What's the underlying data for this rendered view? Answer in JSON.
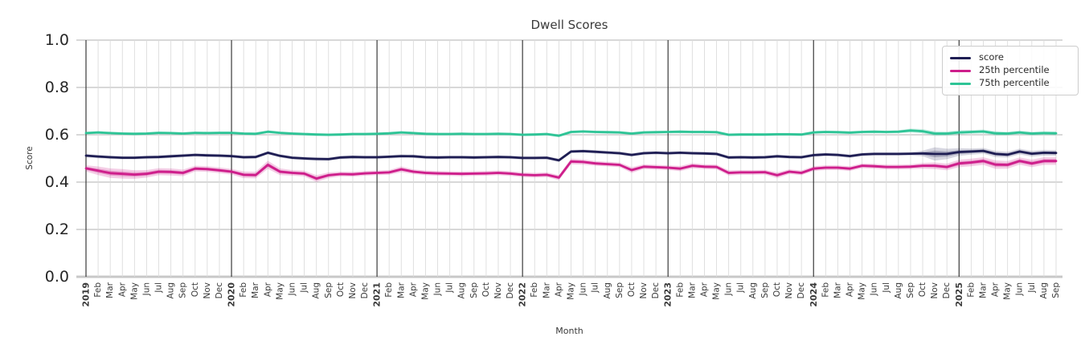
{
  "chart_data": {
    "type": "line",
    "title": "Dwell Scores",
    "xlabel": "Month",
    "ylabel": "Score",
    "ylim": [
      0.0,
      1.0
    ],
    "yticks": [
      0.0,
      0.2,
      0.4,
      0.6,
      0.8,
      1.0
    ],
    "grid": true,
    "legend_position": "upper right",
    "x_labels": [
      "2019",
      "Feb",
      "Mar",
      "Apr",
      "May",
      "Jun",
      "Jul",
      "Aug",
      "Sep",
      "Oct",
      "Nov",
      "Dec",
      "2020",
      "Feb",
      "Mar",
      "Apr",
      "May",
      "Jun",
      "Jul",
      "Aug",
      "Sep",
      "Oct",
      "Nov",
      "Dec",
      "2021",
      "Feb",
      "Mar",
      "Apr",
      "May",
      "Jun",
      "Jul",
      "Aug",
      "Sep",
      "Oct",
      "Nov",
      "Dec",
      "2022",
      "Feb",
      "Mar",
      "Apr",
      "May",
      "Jun",
      "Jul",
      "Aug",
      "Sep",
      "Oct",
      "Nov",
      "Dec",
      "2023",
      "Feb",
      "Mar",
      "Apr",
      "May",
      "Jun",
      "Jul",
      "Aug",
      "Sep",
      "Oct",
      "Nov",
      "Dec",
      "2024",
      "Feb",
      "Mar",
      "Apr",
      "May",
      "Jun",
      "Jul",
      "Aug",
      "Sep",
      "Oct",
      "Nov",
      "Dec",
      "2025",
      "Feb",
      "Mar",
      "Apr",
      "May",
      "Jun",
      "Jul",
      "Aug",
      "Sep"
    ],
    "year_tick_indices": [
      0,
      12,
      24,
      36,
      48,
      60,
      72
    ],
    "series": [
      {
        "name": "score",
        "color": "#1e1d53",
        "band_opacity": 0.18,
        "values": [
          0.512,
          0.508,
          0.505,
          0.503,
          0.503,
          0.505,
          0.506,
          0.509,
          0.512,
          0.515,
          0.513,
          0.512,
          0.51,
          0.505,
          0.506,
          0.524,
          0.511,
          0.503,
          0.5,
          0.498,
          0.497,
          0.504,
          0.506,
          0.505,
          0.505,
          0.507,
          0.51,
          0.509,
          0.505,
          0.504,
          0.505,
          0.505,
          0.504,
          0.505,
          0.506,
          0.505,
          0.502,
          0.502,
          0.503,
          0.492,
          0.529,
          0.531,
          0.528,
          0.525,
          0.522,
          0.515,
          0.522,
          0.524,
          0.522,
          0.524,
          0.522,
          0.521,
          0.519,
          0.504,
          0.505,
          0.504,
          0.505,
          0.509,
          0.506,
          0.505,
          0.514,
          0.517,
          0.515,
          0.51,
          0.517,
          0.519,
          0.519,
          0.519,
          0.52,
          0.521,
          0.519,
          0.519,
          0.527,
          0.529,
          0.532,
          0.519,
          0.516,
          0.529,
          0.52,
          0.524,
          0.523
        ],
        "band_halfwidth": [
          0.007,
          0.007,
          0.007,
          0.007,
          0.007,
          0.007,
          0.007,
          0.007,
          0.007,
          0.007,
          0.007,
          0.007,
          0.007,
          0.007,
          0.007,
          0.007,
          0.007,
          0.007,
          0.007,
          0.007,
          0.007,
          0.007,
          0.007,
          0.007,
          0.007,
          0.007,
          0.007,
          0.007,
          0.007,
          0.007,
          0.007,
          0.007,
          0.007,
          0.007,
          0.007,
          0.007,
          0.007,
          0.007,
          0.007,
          0.007,
          0.007,
          0.007,
          0.007,
          0.007,
          0.007,
          0.007,
          0.007,
          0.007,
          0.007,
          0.007,
          0.007,
          0.007,
          0.007,
          0.007,
          0.007,
          0.007,
          0.007,
          0.007,
          0.007,
          0.007,
          0.007,
          0.007,
          0.007,
          0.007,
          0.007,
          0.007,
          0.007,
          0.007,
          0.007,
          0.012,
          0.028,
          0.022,
          0.016,
          0.013,
          0.012,
          0.013,
          0.012,
          0.012,
          0.012,
          0.012,
          0.012
        ]
      },
      {
        "name": "25th percentile",
        "color": "#ce1e8b",
        "band_opacity": 0.22,
        "values": [
          0.458,
          0.448,
          0.438,
          0.435,
          0.432,
          0.435,
          0.444,
          0.443,
          0.439,
          0.457,
          0.455,
          0.45,
          0.444,
          0.431,
          0.43,
          0.473,
          0.444,
          0.439,
          0.436,
          0.415,
          0.429,
          0.434,
          0.433,
          0.437,
          0.439,
          0.441,
          0.454,
          0.444,
          0.439,
          0.437,
          0.436,
          0.435,
          0.436,
          0.437,
          0.439,
          0.436,
          0.431,
          0.429,
          0.431,
          0.419,
          0.487,
          0.485,
          0.479,
          0.476,
          0.473,
          0.451,
          0.465,
          0.463,
          0.461,
          0.457,
          0.469,
          0.465,
          0.464,
          0.439,
          0.441,
          0.441,
          0.442,
          0.429,
          0.444,
          0.439,
          0.457,
          0.461,
          0.461,
          0.457,
          0.469,
          0.467,
          0.464,
          0.464,
          0.465,
          0.469,
          0.469,
          0.464,
          0.479,
          0.483,
          0.489,
          0.474,
          0.473,
          0.489,
          0.479,
          0.489,
          0.489
        ],
        "band_halfwidth": [
          0.013,
          0.018,
          0.02,
          0.02,
          0.018,
          0.016,
          0.015,
          0.015,
          0.014,
          0.012,
          0.012,
          0.012,
          0.012,
          0.014,
          0.014,
          0.017,
          0.014,
          0.012,
          0.012,
          0.014,
          0.012,
          0.01,
          0.01,
          0.01,
          0.01,
          0.01,
          0.012,
          0.01,
          0.01,
          0.01,
          0.01,
          0.01,
          0.01,
          0.01,
          0.01,
          0.01,
          0.01,
          0.01,
          0.01,
          0.011,
          0.012,
          0.011,
          0.01,
          0.01,
          0.01,
          0.012,
          0.01,
          0.01,
          0.01,
          0.011,
          0.011,
          0.01,
          0.01,
          0.011,
          0.01,
          0.01,
          0.01,
          0.012,
          0.01,
          0.01,
          0.01,
          0.01,
          0.01,
          0.01,
          0.01,
          0.01,
          0.01,
          0.01,
          0.01,
          0.012,
          0.014,
          0.014,
          0.016,
          0.016,
          0.016,
          0.018,
          0.016,
          0.015,
          0.016,
          0.016,
          0.016
        ]
      },
      {
        "name": "75th percentile",
        "color": "#2ec496",
        "band_opacity": 0.25,
        "values": [
          0.607,
          0.61,
          0.607,
          0.605,
          0.604,
          0.605,
          0.608,
          0.607,
          0.605,
          0.608,
          0.607,
          0.608,
          0.608,
          0.605,
          0.604,
          0.613,
          0.608,
          0.605,
          0.603,
          0.601,
          0.6,
          0.601,
          0.603,
          0.603,
          0.604,
          0.606,
          0.61,
          0.607,
          0.604,
          0.603,
          0.603,
          0.604,
          0.603,
          0.603,
          0.604,
          0.603,
          0.6,
          0.601,
          0.603,
          0.596,
          0.612,
          0.614,
          0.612,
          0.611,
          0.61,
          0.605,
          0.61,
          0.611,
          0.612,
          0.613,
          0.612,
          0.612,
          0.611,
          0.6,
          0.601,
          0.601,
          0.601,
          0.602,
          0.602,
          0.601,
          0.61,
          0.612,
          0.611,
          0.609,
          0.612,
          0.613,
          0.612,
          0.613,
          0.618,
          0.615,
          0.605,
          0.605,
          0.61,
          0.612,
          0.614,
          0.606,
          0.605,
          0.61,
          0.605,
          0.607,
          0.606
        ],
        "band_halfwidth": [
          0.006,
          0.006,
          0.006,
          0.006,
          0.006,
          0.006,
          0.006,
          0.006,
          0.006,
          0.006,
          0.006,
          0.006,
          0.006,
          0.006,
          0.006,
          0.006,
          0.006,
          0.006,
          0.006,
          0.006,
          0.006,
          0.006,
          0.006,
          0.006,
          0.006,
          0.006,
          0.006,
          0.006,
          0.006,
          0.006,
          0.006,
          0.006,
          0.006,
          0.006,
          0.006,
          0.006,
          0.006,
          0.006,
          0.006,
          0.006,
          0.006,
          0.006,
          0.006,
          0.006,
          0.006,
          0.006,
          0.006,
          0.006,
          0.006,
          0.006,
          0.006,
          0.006,
          0.006,
          0.006,
          0.006,
          0.006,
          0.006,
          0.006,
          0.006,
          0.006,
          0.006,
          0.006,
          0.006,
          0.006,
          0.006,
          0.006,
          0.006,
          0.006,
          0.008,
          0.009,
          0.01,
          0.009,
          0.009,
          0.008,
          0.008,
          0.009,
          0.008,
          0.008,
          0.008,
          0.008,
          0.008
        ]
      }
    ],
    "colors": {
      "grid_horizontal": "#cbcbcb",
      "grid_month": "#dcdcdc",
      "grid_year": "#3a3a3a",
      "axis_baseline": "#c8c8c8",
      "tick_text": "#262626",
      "label_text": "#3a3a3a"
    }
  }
}
